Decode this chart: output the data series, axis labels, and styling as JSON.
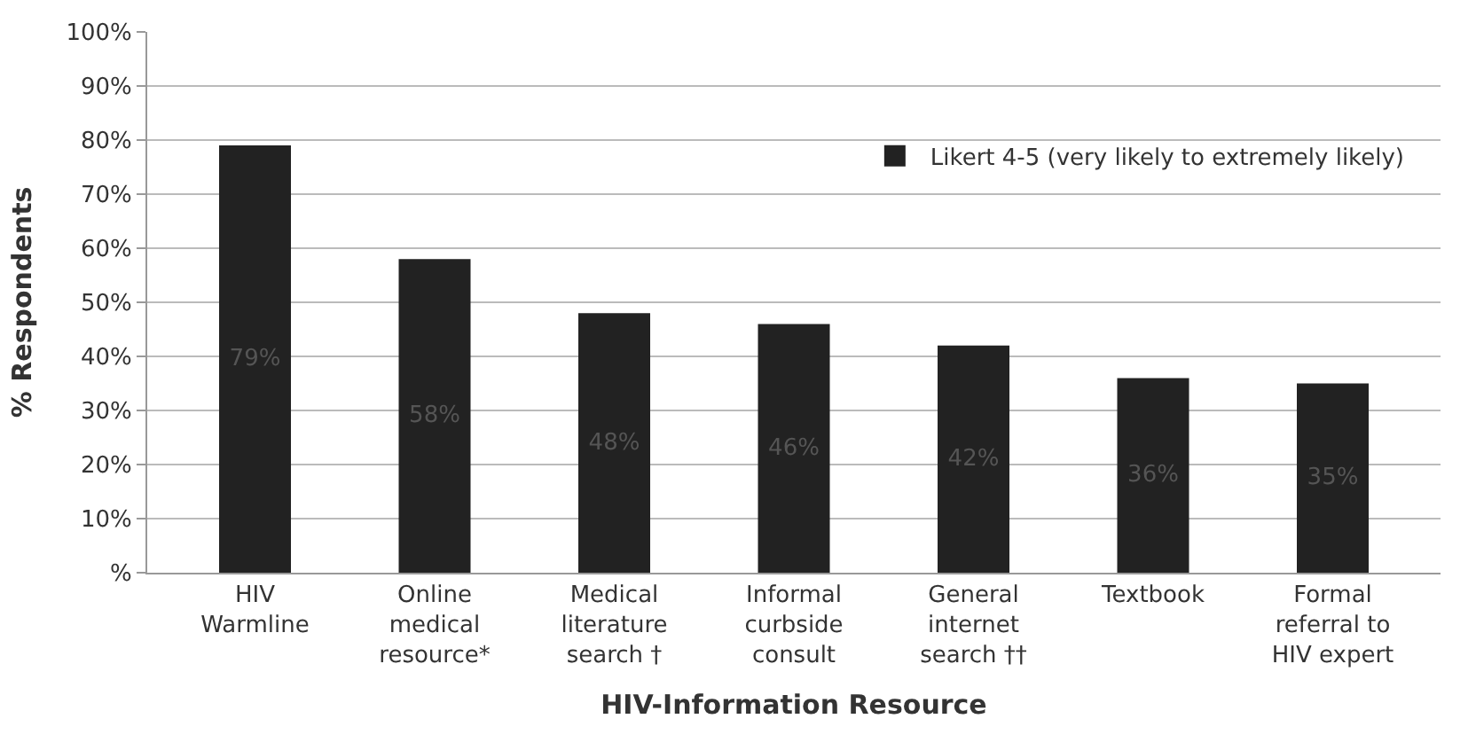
{
  "chart_data": {
    "type": "bar",
    "xlabel": "HIV-Information Resource",
    "ylabel": "% Respondents",
    "categories": [
      "HIV\nWarmline",
      "Online\nmedical\nresource*",
      "Medical\nliterature\nsearch †",
      "Informal\ncurbside\nconsult",
      "General\ninternet\nsearch ††",
      "Textbook",
      "Formal\nreferral to\nHIV expert"
    ],
    "series": [
      {
        "name": "Likert 4-5 (very likely to extremely likely)",
        "color": "#222222",
        "values": [
          79,
          58,
          48,
          46,
          42,
          36,
          35
        ],
        "value_labels": [
          "79%",
          "58%",
          "48%",
          "46%",
          "42%",
          "36%",
          "35%"
        ]
      }
    ],
    "ylim": [
      0,
      100
    ],
    "yticks": [
      {
        "value": 0,
        "label": "%"
      },
      {
        "value": 10,
        "label": "10%"
      },
      {
        "value": 20,
        "label": "20%"
      },
      {
        "value": 30,
        "label": "30%"
      },
      {
        "value": 40,
        "label": "40%"
      },
      {
        "value": 50,
        "label": "50%"
      },
      {
        "value": 60,
        "label": "60%"
      },
      {
        "value": 70,
        "label": "70%"
      },
      {
        "value": 80,
        "label": "80%"
      },
      {
        "value": 90,
        "label": "90%"
      },
      {
        "value": 100,
        "label": "100%"
      }
    ],
    "grid": "y",
    "legend": "top right"
  }
}
